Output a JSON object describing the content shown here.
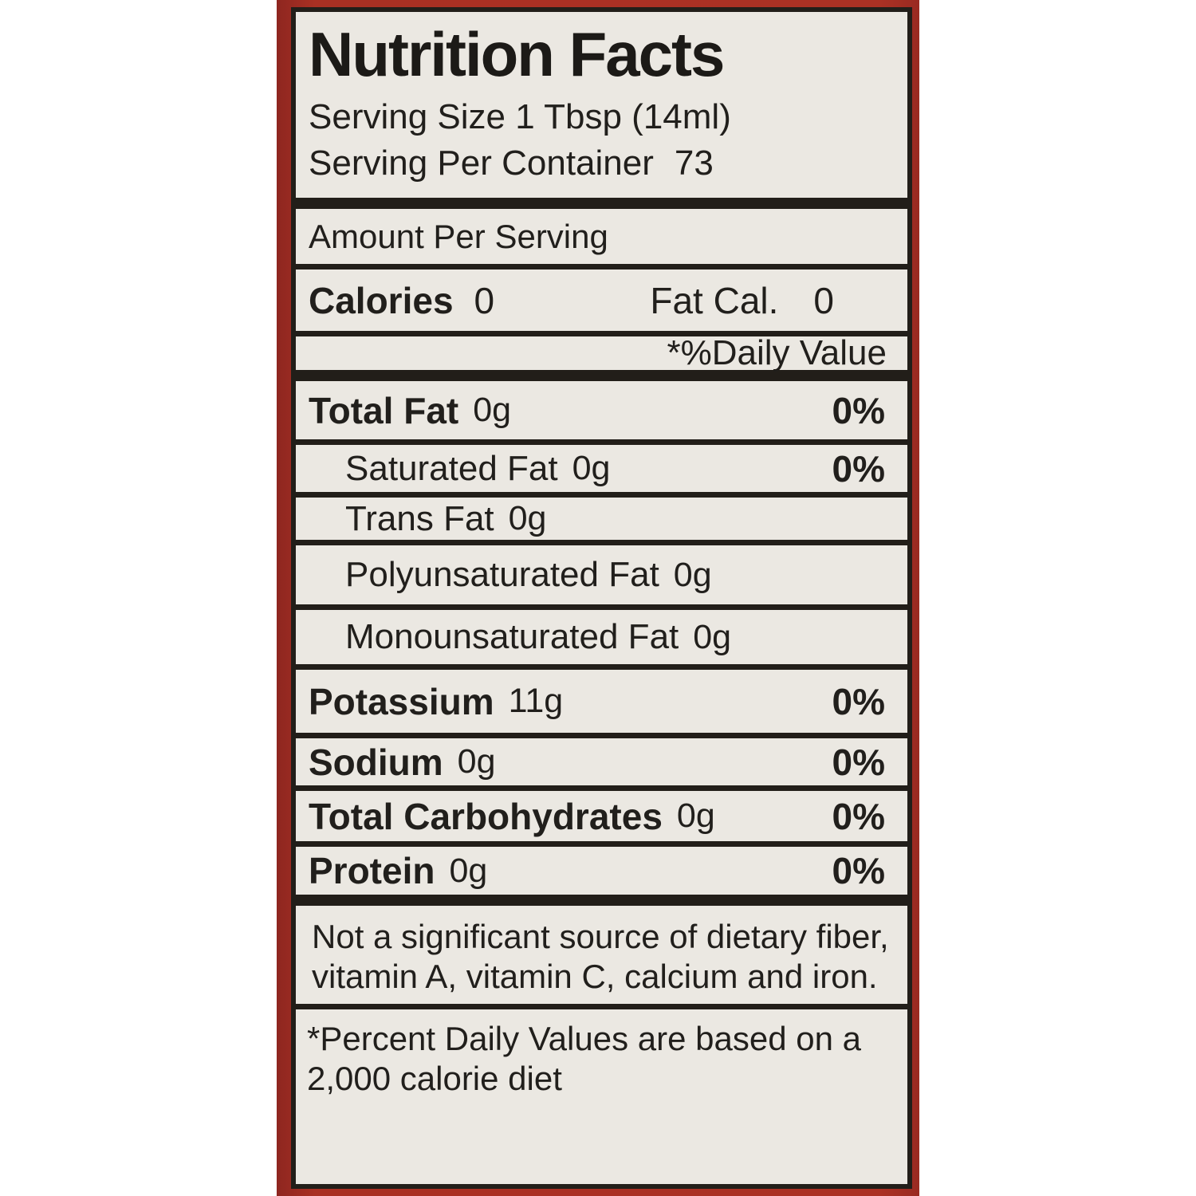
{
  "label": {
    "title": "Nutrition Facts",
    "serving_size": "Serving Size 1 Tbsp (14ml)",
    "servings_per_container_label": "Serving Per Container",
    "servings_per_container_value": "73",
    "amount_per_serving": "Amount Per Serving",
    "calories_label": "Calories",
    "calories_value": "0",
    "fat_cal_label": "Fat Cal.",
    "fat_cal_value": "0",
    "daily_value_header": "*%Daily Value",
    "rows": [
      {
        "name": "Total Fat",
        "amount": "0g",
        "dv": "0%"
      },
      {
        "name": "Saturated Fat",
        "amount": "0g",
        "dv": "0%"
      },
      {
        "name": "Trans Fat",
        "amount": "0g",
        "dv": ""
      },
      {
        "name": "Polyunsaturated Fat",
        "amount": "0g",
        "dv": ""
      },
      {
        "name": "Monounsaturated Fat",
        "amount": "0g",
        "dv": ""
      },
      {
        "name": "Potassium",
        "amount": "11g",
        "dv": "0%"
      },
      {
        "name": "Sodium",
        "amount": "0g",
        "dv": "0%"
      },
      {
        "name": "Total Carbohydrates",
        "amount": "0g",
        "dv": "0%"
      },
      {
        "name": "Protein",
        "amount": "0g",
        "dv": "0%"
      }
    ],
    "note": "Not a significant source of dietary fiber, vitamin A, vitamin C, calcium and iron.",
    "footnote": "*Percent Daily Values are based on a 2,000 calorie diet",
    "colors": {
      "frame_red": "#a93023",
      "label_background": "#ebe8e2",
      "text": "#211f1c",
      "divider": "#221e19"
    }
  }
}
